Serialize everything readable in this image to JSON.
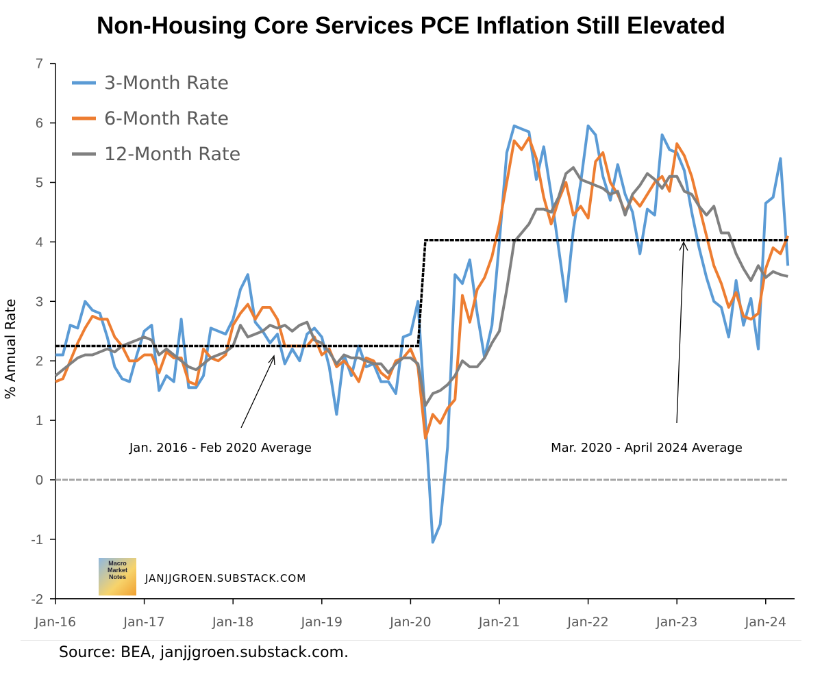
{
  "chart_data": {
    "type": "line",
    "title": "Non-Housing Core Services PCE Inflation Still Elevated",
    "ylabel": "% Annual Rate",
    "xlabel": "",
    "ylim": [
      -2,
      7
    ],
    "yticks": [
      "-2",
      "-1",
      "0",
      "1",
      "2",
      "3",
      "4",
      "5",
      "6",
      "7"
    ],
    "xticks": [
      "Jan-16",
      "Jan-17",
      "Jan-18",
      "Jan-19",
      "Jan-20",
      "Jan-21",
      "Jan-22",
      "Jan-23",
      "Jan-24"
    ],
    "x_start": "Jan-16",
    "x_end": "Apr-24",
    "legend_position": "top-left",
    "series": [
      {
        "name": "3-Month Rate",
        "color": "#5b9bd5",
        "values": [
          2.1,
          2.1,
          2.6,
          2.55,
          3.0,
          2.85,
          2.8,
          2.4,
          1.9,
          1.7,
          1.65,
          2.1,
          2.5,
          2.6,
          1.5,
          1.75,
          1.65,
          2.7,
          1.55,
          1.55,
          1.75,
          2.55,
          2.5,
          2.45,
          2.7,
          3.2,
          3.45,
          2.65,
          2.5,
          2.3,
          2.45,
          1.95,
          2.2,
          2.0,
          2.45,
          2.55,
          2.4,
          1.9,
          1.1,
          2.1,
          1.75,
          2.25,
          1.9,
          1.95,
          1.65,
          1.65,
          1.45,
          2.4,
          2.45,
          3.0,
          1.0,
          -1.05,
          -0.75,
          0.55,
          3.45,
          3.3,
          3.7,
          2.8,
          2.05,
          2.6,
          4.0,
          5.5,
          5.95,
          5.9,
          5.85,
          5.05,
          5.6,
          4.8,
          3.9,
          3.0,
          4.2,
          5.0,
          5.95,
          5.8,
          5.1,
          4.7,
          5.3,
          4.8,
          4.5,
          3.8,
          4.55,
          4.45,
          5.8,
          5.55,
          5.5,
          5.2,
          4.5,
          3.9,
          3.4,
          3.0,
          2.9,
          2.4,
          3.35,
          2.6,
          3.05,
          2.2,
          4.65,
          4.75,
          5.4,
          3.6
        ]
      },
      {
        "name": "6-Month Rate",
        "color": "#ed7d31",
        "values": [
          1.65,
          1.7,
          2.0,
          2.3,
          2.55,
          2.75,
          2.7,
          2.7,
          2.4,
          2.25,
          2.0,
          2.0,
          2.1,
          2.1,
          1.8,
          2.15,
          2.05,
          2.05,
          1.65,
          1.6,
          2.2,
          2.05,
          2.0,
          2.1,
          2.6,
          2.8,
          2.95,
          2.7,
          2.9,
          2.9,
          2.7,
          2.25,
          2.25,
          2.25,
          2.25,
          2.4,
          2.1,
          2.2,
          1.9,
          2.0,
          1.85,
          1.65,
          2.05,
          2.0,
          1.8,
          1.7,
          2.0,
          2.05,
          2.2,
          1.9,
          0.7,
          1.1,
          0.95,
          1.2,
          1.35,
          3.1,
          2.65,
          3.2,
          3.4,
          3.75,
          4.3,
          5.0,
          5.7,
          5.55,
          5.75,
          5.4,
          4.75,
          4.3,
          4.7,
          5.0,
          4.45,
          4.6,
          4.4,
          5.35,
          5.5,
          5.0,
          4.8,
          4.5,
          4.75,
          4.6,
          4.8,
          5.0,
          5.1,
          4.85,
          5.65,
          5.45,
          5.1,
          4.6,
          4.1,
          3.6,
          3.3,
          2.9,
          3.15,
          2.75,
          2.7,
          2.8,
          3.55,
          3.9,
          3.8,
          4.1
        ]
      },
      {
        "name": "12-Month Rate",
        "color": "#808080",
        "values": [
          1.75,
          1.85,
          1.95,
          2.05,
          2.1,
          2.1,
          2.15,
          2.2,
          2.15,
          2.25,
          2.3,
          2.35,
          2.4,
          2.35,
          2.1,
          2.2,
          2.1,
          2.0,
          1.9,
          1.85,
          1.95,
          2.05,
          2.1,
          2.15,
          2.25,
          2.6,
          2.4,
          2.45,
          2.5,
          2.6,
          2.55,
          2.6,
          2.5,
          2.6,
          2.65,
          2.35,
          2.3,
          2.15,
          1.95,
          2.1,
          2.05,
          2.05,
          2.0,
          1.95,
          1.95,
          1.8,
          1.95,
          2.05,
          2.05,
          1.95,
          1.25,
          1.45,
          1.5,
          1.6,
          1.75,
          2.0,
          1.9,
          1.9,
          2.05,
          2.3,
          2.5,
          3.2,
          4.0,
          4.15,
          4.3,
          4.55,
          4.55,
          4.5,
          4.75,
          5.15,
          5.25,
          5.05,
          5.0,
          4.95,
          4.9,
          4.8,
          4.85,
          4.45,
          4.8,
          4.95,
          5.15,
          5.05,
          4.9,
          5.1,
          5.1,
          4.85,
          4.8,
          4.6,
          4.45,
          4.6,
          4.15,
          4.15,
          3.8,
          3.55,
          3.35,
          3.6,
          3.4,
          3.5,
          3.45,
          3.42
        ]
      }
    ],
    "averages": [
      {
        "label": "Jan. 2016 - Feb 2020 Average",
        "value": 2.25,
        "from_month": 0,
        "to_month": 49
      },
      {
        "label": "Mar. 2020 - April 2024 Average",
        "value": 4.03,
        "from_month": 50,
        "to_month": 99
      }
    ]
  },
  "footer": {
    "source": "Source: BEA, janjjgroen.substack.com.",
    "site": "JANJJGROEN.SUBSTACK.COM",
    "logo_text": "Macro Market Notes"
  }
}
